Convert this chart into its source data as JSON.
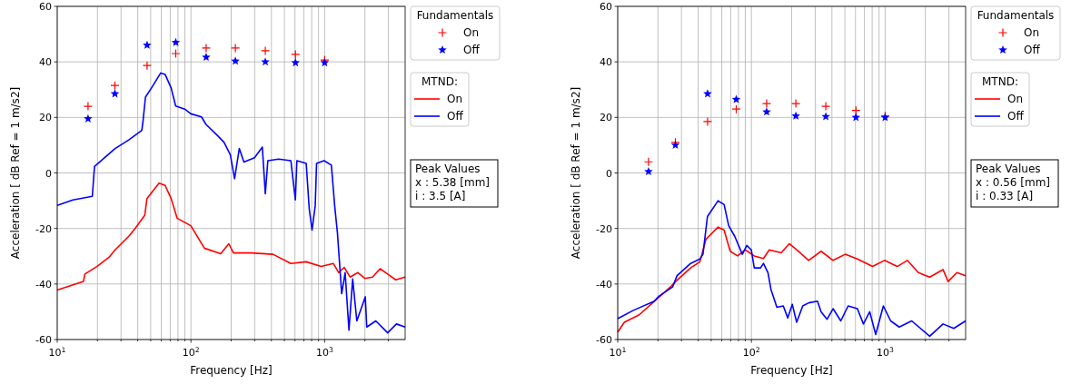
{
  "chart_data": [
    {
      "type": "line",
      "xlabel": "Frequency [Hz]",
      "ylabel": "Acceleration [ dB Ref = 1 m/s2]",
      "legend_title": "Fundamentals",
      "legend": "top right",
      "grid": true,
      "log": "x",
      "xlim": [
        10,
        4000
      ],
      "ylim": [
        -60,
        60
      ],
      "yticks": [
        -60,
        -40,
        -20,
        0,
        20,
        40,
        60
      ],
      "xticks": [
        {
          "value": 10,
          "label": "10$^{1}$"
        },
        {
          "value": 20,
          "label": null
        },
        {
          "value": 30,
          "label": null
        },
        {
          "value": 40,
          "label": null
        },
        {
          "value": 50,
          "label": null
        },
        {
          "value": 60,
          "label": null
        },
        {
          "value": 70,
          "label": null
        },
        {
          "value": 80,
          "label": null
        },
        {
          "value": 90,
          "label": null
        },
        {
          "value": 100,
          "label": "10$^{2}$"
        },
        {
          "value": 200,
          "label": null
        },
        {
          "value": 300,
          "label": null
        },
        {
          "value": 400,
          "label": null
        },
        {
          "value": 500,
          "label": null
        },
        {
          "value": 600,
          "label": null
        },
        {
          "value": 700,
          "label": null
        },
        {
          "value": 800,
          "label": null
        },
        {
          "value": 900,
          "label": null
        },
        {
          "value": 1000,
          "label": "10$^{3}$"
        },
        {
          "value": 2000,
          "label": null
        },
        {
          "value": 3000,
          "label": null
        }
      ],
      "annotations": [
        "MTND:",
        "Peak Values",
        "x : 5.38 [mm]",
        "i : 3.5 [A]"
      ],
      "series": [
        {
          "type": "scatter",
          "name": "On",
          "color": "#ff0000",
          "marker": "cross",
          "x": [
            17,
            27,
            47,
            77,
            130,
            215,
            360,
            605,
            1000
          ],
          "values": [
            24,
            31.5,
            38.7,
            43,
            45,
            45,
            44,
            42.7,
            40.7
          ]
        },
        {
          "type": "scatter",
          "name": "Off",
          "color": "#0000ff",
          "marker": "star",
          "x": [
            17,
            27,
            47,
            77,
            130,
            215,
            360,
            605,
            1000
          ],
          "values": [
            19.5,
            28.5,
            46,
            47,
            41.7,
            40.3,
            40,
            39.7,
            39.7
          ]
        },
        {
          "name": "On",
          "color": "#ff0000",
          "x": [
            10,
            15.7,
            16.1,
            19.8,
            24.4,
            27.1,
            34.3,
            38.1,
            45.2,
            46.9,
            57.7,
            64.1,
            71.1,
            78.8,
            99.8,
            126,
            167,
            192,
            208,
            284,
            411,
            559,
            728,
            942,
            1160,
            1275,
            1400,
            1550,
            1772,
            2000,
            2281,
            2600,
            2960,
            3400,
            4000
          ],
          "values": [
            -42.2,
            -39.1,
            -36.4,
            -33.7,
            -30.4,
            -27.7,
            -22.8,
            -20.1,
            -15.2,
            -9.2,
            -3.7,
            -4.5,
            -9.2,
            -16.3,
            -19,
            -27.1,
            -29.1,
            -25.5,
            -28.8,
            -28.8,
            -29.3,
            -32.6,
            -32,
            -33.7,
            -32.6,
            -35.9,
            -34,
            -37.5,
            -35.9,
            -38,
            -37.5,
            -34.5,
            -36.4,
            -38.5,
            -37.5
          ]
        },
        {
          "name": "Off",
          "color": "#0000ff",
          "x": [
            10,
            13.1,
            18.3,
            19,
            27.1,
            34.3,
            42.9,
            43.8,
            45.7,
            50.7,
            59.4,
            64.1,
            71.1,
            76.9,
            89.9,
            99.8,
            120,
            129.5,
            160,
            177,
            197,
            212,
            230,
            249,
            299,
            342,
            360,
            376,
            453,
            559,
            604,
            620,
            728,
            767,
            805,
            850,
            870,
            990,
            1123,
            1189,
            1247,
            1341,
            1423,
            1520,
            1620,
            1741,
            2013,
            2065,
            2413,
            2960,
            3443,
            4000
          ],
          "values": [
            -11.7,
            -9.7,
            -8.4,
            2.3,
            8.8,
            11.9,
            15.3,
            18.6,
            27.3,
            30.6,
            36,
            35.5,
            30.6,
            24.1,
            23,
            21.3,
            20.2,
            17.5,
            13.2,
            11,
            6.6,
            -2.1,
            8.8,
            3.9,
            5.5,
            9.3,
            -7.5,
            4.4,
            5,
            4.4,
            -9.7,
            4.4,
            3.4,
            -13,
            -20.6,
            -11.9,
            3.4,
            4.4,
            2.8,
            -11.9,
            -21.7,
            -43.5,
            -35.9,
            -56.6,
            -38.2,
            -53.3,
            -44.6,
            -55.5,
            -53.3,
            -57.6,
            -54.4,
            -55.5
          ]
        }
      ]
    },
    {
      "type": "line",
      "xlabel": "Frequency [Hz]",
      "ylabel": "Acceleration [ dB Ref = 1 m/s2]",
      "legend_title": "Fundamentals",
      "legend": "top right",
      "grid": true,
      "log": "x",
      "xlim": [
        10,
        4000
      ],
      "ylim": [
        -60,
        60
      ],
      "yticks": [
        -60,
        -40,
        -20,
        0,
        20,
        40,
        60
      ],
      "xticks": [
        {
          "value": 10,
          "label": "10$^{1}$"
        },
        {
          "value": 20,
          "label": null
        },
        {
          "value": 30,
          "label": null
        },
        {
          "value": 40,
          "label": null
        },
        {
          "value": 50,
          "label": null
        },
        {
          "value": 60,
          "label": null
        },
        {
          "value": 70,
          "label": null
        },
        {
          "value": 80,
          "label": null
        },
        {
          "value": 90,
          "label": null
        },
        {
          "value": 100,
          "label": "10$^{2}$"
        },
        {
          "value": 200,
          "label": null
        },
        {
          "value": 300,
          "label": null
        },
        {
          "value": 400,
          "label": null
        },
        {
          "value": 500,
          "label": null
        },
        {
          "value": 600,
          "label": null
        },
        {
          "value": 700,
          "label": null
        },
        {
          "value": 800,
          "label": null
        },
        {
          "value": 900,
          "label": null
        },
        {
          "value": 1000,
          "label": "10$^{3}$"
        },
        {
          "value": 2000,
          "label": null
        },
        {
          "value": 3000,
          "label": null
        }
      ],
      "annotations": [
        "MTND:",
        "Peak Values",
        "x : 0.56 [mm]",
        "i : 0.33 [A]"
      ],
      "series": [
        {
          "type": "scatter",
          "name": "On",
          "color": "#ff0000",
          "marker": "cross",
          "x": [
            17,
            27,
            47,
            77,
            130,
            215,
            360,
            605,
            1000
          ],
          "values": [
            4,
            11,
            18.5,
            23,
            25,
            25,
            24,
            22.5,
            20.5
          ]
        },
        {
          "type": "scatter",
          "name": "Off",
          "color": "#0000ff",
          "marker": "star",
          "x": [
            17,
            27,
            47,
            77,
            130,
            215,
            360,
            605,
            1000
          ],
          "values": [
            0.5,
            10,
            28.5,
            26.5,
            22,
            20.5,
            20.3,
            20,
            20
          ]
        },
        {
          "name": "On",
          "color": "#ff0000",
          "x": [
            10,
            11.2,
            14.5,
            18.8,
            25.1,
            27.1,
            35.1,
            41.2,
            45.7,
            56.3,
            62.5,
            69.4,
            78.8,
            90,
            105,
            123,
            136,
            167,
            192,
            218,
            268,
            332,
            408,
            503,
            620,
            805,
            990,
            1231,
            1467,
            1772,
            2155,
            2710,
            2960,
            3443,
            4000
          ],
          "values": [
            -57.4,
            -53.8,
            -51.1,
            -46.2,
            -40.8,
            -39.1,
            -34.2,
            -32,
            -23.9,
            -19.5,
            -20.6,
            -28.2,
            -29.9,
            -27.7,
            -29.9,
            -30.8,
            -27.7,
            -28.8,
            -25.5,
            -27.7,
            -31.5,
            -28.2,
            -31.5,
            -29.3,
            -31,
            -33.7,
            -31.5,
            -33.7,
            -31.5,
            -35.9,
            -37.5,
            -34.8,
            -39.1,
            -35.9,
            -37
          ]
        },
        {
          "name": "Off",
          "color": "#0000ff",
          "x": [
            10,
            13.1,
            18.8,
            20.3,
            25.7,
            27.8,
            35.1,
            41.2,
            43.4,
            46.9,
            56.3,
            62.5,
            67.6,
            75,
            85.5,
            92.3,
            99.8,
            105,
            117,
            123,
            133,
            140,
            155,
            173,
            187,
            202,
            218,
            242,
            268,
            312,
            332,
            368,
            408,
            466,
            529,
            620,
            688,
            767,
            850,
            970,
            1100,
            1275,
            1580,
            2155,
            2710,
            3260,
            4000
          ],
          "values": [
            -52.5,
            -49.5,
            -46.2,
            -44.4,
            -41.1,
            -37,
            -32.6,
            -31,
            -29.3,
            -15.7,
            -10,
            -11.4,
            -19,
            -22.8,
            -29.3,
            -26.1,
            -27.7,
            -34.2,
            -34.2,
            -32.6,
            -35.9,
            -41.9,
            -48.4,
            -47.9,
            -52.2,
            -47.3,
            -53.8,
            -47.9,
            -46.8,
            -46.2,
            -50,
            -52.7,
            -48.9,
            -53.3,
            -47.9,
            -48.9,
            -54.4,
            -50,
            -58.2,
            -47.9,
            -53.3,
            -55.5,
            -53.3,
            -58.8,
            -54.4,
            -56,
            -53.3
          ]
        }
      ]
    }
  ]
}
